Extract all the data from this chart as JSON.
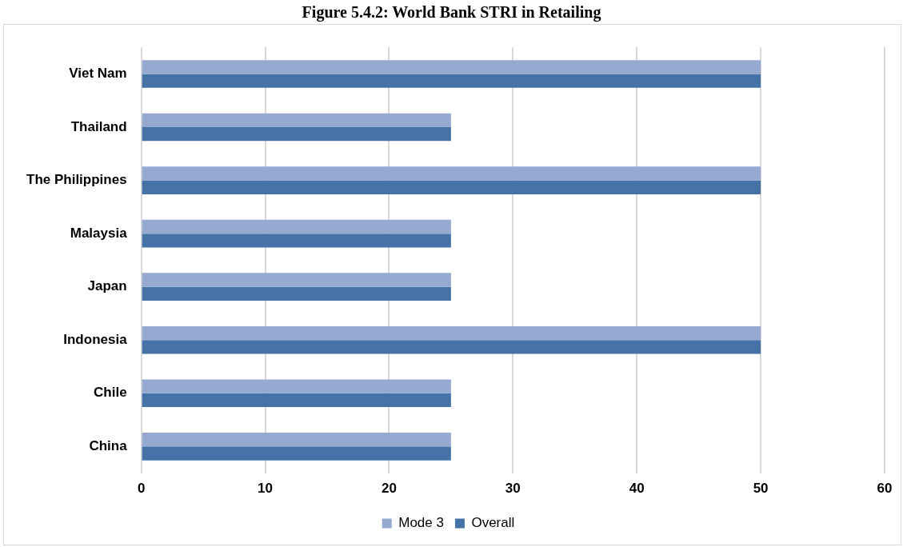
{
  "chart_data": {
    "type": "bar",
    "orientation": "horizontal",
    "title": "Figure 5.4.2: World Bank STRI in Retailing",
    "categories": [
      "Viet Nam",
      "Thailand",
      "The Philippines",
      "Malaysia",
      "Japan",
      "Indonesia",
      "Chile",
      "China"
    ],
    "series": [
      {
        "name": "Mode 3",
        "color": "#95a9d1",
        "values": [
          50,
          25,
          50,
          25,
          25,
          50,
          25,
          25
        ]
      },
      {
        "name": "Overall",
        "color": "#4573a7",
        "values": [
          50,
          25,
          50,
          25,
          25,
          50,
          25,
          25
        ]
      }
    ],
    "xlim": [
      0,
      60
    ],
    "xticks": [
      0,
      10,
      20,
      30,
      40,
      50,
      60
    ],
    "grid": "x",
    "legend": "bottom"
  }
}
